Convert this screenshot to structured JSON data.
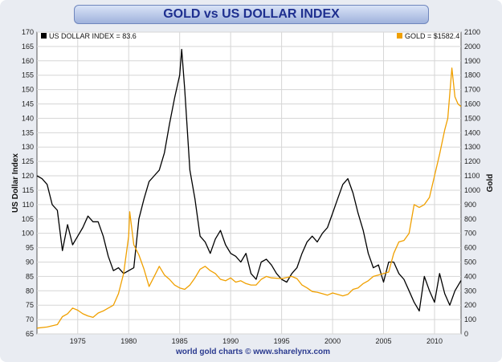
{
  "chart_data": {
    "type": "line",
    "title": "GOLD vs US DOLLAR INDEX",
    "ylabel": "US Dollar Index",
    "y2label": "Gold",
    "footer": "world gold charts © www.sharelynx.com",
    "xlim": [
      1971,
      2012.6
    ],
    "ylim": [
      65,
      170
    ],
    "y2lim": [
      0,
      2100
    ],
    "x_ticks": [
      1975,
      1980,
      1985,
      1990,
      1995,
      2000,
      2005,
      2010
    ],
    "y_ticks": [
      65,
      70,
      75,
      80,
      85,
      90,
      95,
      100,
      105,
      110,
      115,
      120,
      125,
      130,
      135,
      140,
      145,
      150,
      155,
      160,
      165,
      170
    ],
    "y2_ticks": [
      0,
      100,
      200,
      300,
      400,
      500,
      600,
      700,
      800,
      900,
      1000,
      1100,
      1200,
      1300,
      1400,
      1500,
      1600,
      1700,
      1800,
      1900,
      2000,
      2100
    ],
    "grid": true,
    "series": [
      {
        "name": "US DOLLAR INDEX = 83.6",
        "axis": "left",
        "color": "#000000",
        "x": [
          1971,
          1971.5,
          1972,
          1972.5,
          1973,
          1973.5,
          1974,
          1974.5,
          1975,
          1975.5,
          1976,
          1976.5,
          1977,
          1977.5,
          1978,
          1978.5,
          1979,
          1979.5,
          1980,
          1980.5,
          1981,
          1981.5,
          1982,
          1982.5,
          1983,
          1983.5,
          1984,
          1984.5,
          1985,
          1985.2,
          1985.5,
          1986,
          1986.5,
          1987,
          1987.5,
          1988,
          1988.5,
          1989,
          1989.5,
          1990,
          1990.5,
          1991,
          1991.5,
          1992,
          1992.5,
          1993,
          1993.5,
          1994,
          1994.5,
          1995,
          1995.5,
          1996,
          1996.5,
          1997,
          1997.5,
          1998,
          1998.5,
          1999,
          1999.5,
          2000,
          2000.5,
          2001,
          2001.5,
          2002,
          2002.5,
          2003,
          2003.5,
          2004,
          2004.5,
          2005,
          2005.5,
          2006,
          2006.5,
          2007,
          2007.5,
          2008,
          2008.5,
          2009,
          2009.5,
          2010,
          2010.5,
          2011,
          2011.5,
          2012,
          2012.6
        ],
        "values": [
          120,
          119,
          117,
          110,
          108,
          94,
          103,
          96,
          99,
          102,
          106,
          104,
          104,
          99,
          92,
          87,
          88,
          86,
          87,
          88,
          105,
          112,
          118,
          120,
          122,
          128,
          138,
          147,
          155,
          164,
          150,
          122,
          112,
          99,
          97,
          93,
          98,
          101,
          96,
          93,
          92,
          90,
          93,
          86,
          84,
          90,
          91,
          89,
          86,
          84,
          83,
          86,
          88,
          93,
          97,
          99,
          97,
          100,
          102,
          107,
          112,
          117,
          119,
          114,
          107,
          101,
          93,
          88,
          89,
          83,
          90,
          90,
          86,
          84,
          80,
          76,
          73,
          85,
          80,
          76,
          86,
          79,
          75,
          80,
          83.6
        ]
      },
      {
        "name": "GOLD = $1582.4",
        "axis": "right",
        "color": "#f0a000",
        "x": [
          1971,
          1972,
          1973,
          1973.5,
          1974,
          1974.5,
          1975,
          1975.5,
          1976,
          1976.5,
          1977,
          1977.5,
          1978,
          1978.5,
          1979,
          1979.5,
          1980,
          1980.1,
          1980.5,
          1981,
          1981.5,
          1982,
          1982.5,
          1983,
          1983.5,
          1984,
          1984.5,
          1985,
          1985.5,
          1986,
          1986.5,
          1987,
          1987.5,
          1988,
          1988.5,
          1989,
          1989.5,
          1990,
          1990.5,
          1991,
          1991.5,
          1992,
          1992.5,
          1993,
          1993.5,
          1994,
          1995,
          1996,
          1996.5,
          1997,
          1997.5,
          1998,
          1998.5,
          1999,
          1999.5,
          2000,
          2000.5,
          2001,
          2001.5,
          2002,
          2002.5,
          2003,
          2003.5,
          2004,
          2004.5,
          2005,
          2005.5,
          2006,
          2006.5,
          2007,
          2007.5,
          2008,
          2008.5,
          2009,
          2009.5,
          2010,
          2010.5,
          2011,
          2011.3,
          2011.7,
          2012,
          2012.3,
          2012.6
        ],
        "values": [
          40,
          48,
          65,
          120,
          140,
          180,
          165,
          140,
          125,
          115,
          145,
          160,
          180,
          200,
          280,
          420,
          680,
          850,
          620,
          550,
          450,
          330,
          400,
          470,
          410,
          380,
          340,
          320,
          310,
          340,
          390,
          450,
          470,
          440,
          420,
          380,
          370,
          390,
          360,
          370,
          350,
          340,
          340,
          380,
          400,
          390,
          385,
          400,
          385,
          340,
          320,
          295,
          290,
          280,
          270,
          285,
          275,
          265,
          275,
          310,
          320,
          350,
          370,
          400,
          410,
          420,
          430,
          560,
          640,
          650,
          700,
          900,
          880,
          900,
          950,
          1100,
          1250,
          1420,
          1500,
          1850,
          1650,
          1600,
          1582.4
        ]
      }
    ]
  }
}
